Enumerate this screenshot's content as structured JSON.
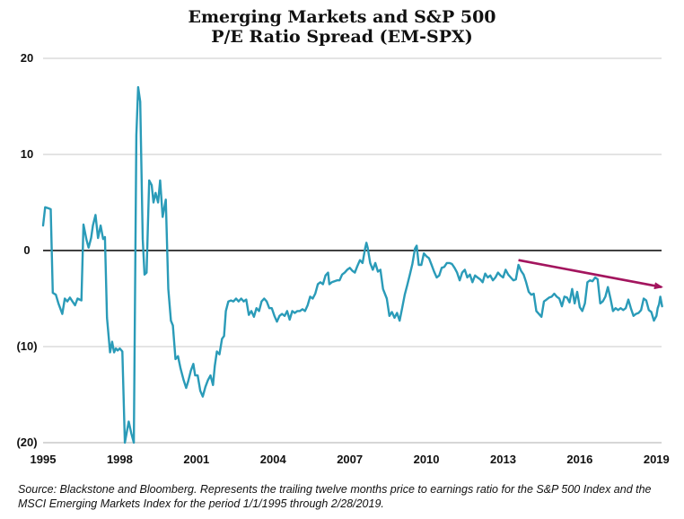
{
  "chart_data": {
    "type": "line",
    "title_lines": [
      "Emerging Markets and S&P 500",
      "P/E Ratio Spread (EM-SPX)"
    ],
    "xlabel": "",
    "ylabel": "",
    "xlim": [
      1995.0,
      2019.2
    ],
    "ylim": [
      -20,
      20
    ],
    "x_ticks": [
      {
        "value": 1995,
        "label": "1995"
      },
      {
        "value": 1998,
        "label": "1998"
      },
      {
        "value": 2001,
        "label": "2001"
      },
      {
        "value": 2004,
        "label": "2004"
      },
      {
        "value": 2007,
        "label": "2007"
      },
      {
        "value": 2010,
        "label": "2010"
      },
      {
        "value": 2013,
        "label": "2013"
      },
      {
        "value": 2016,
        "label": "2016"
      },
      {
        "value": 2019,
        "label": "2019"
      }
    ],
    "y_ticks": [
      {
        "value": 20,
        "label": "20"
      },
      {
        "value": 10,
        "label": "10"
      },
      {
        "value": 0,
        "label": "0"
      },
      {
        "value": -10,
        "label": "(10)"
      },
      {
        "value": -20,
        "label": "(20)"
      }
    ],
    "grid": "horizontal",
    "zero_line": true,
    "series": [
      {
        "color": "#2a9bb8",
        "points": [
          [
            1995.0,
            2.6
          ],
          [
            1995.08,
            4.5
          ],
          [
            1995.2,
            4.4
          ],
          [
            1995.3,
            4.3
          ],
          [
            1995.38,
            -4.4
          ],
          [
            1995.5,
            -4.6
          ],
          [
            1995.6,
            -5.5
          ],
          [
            1995.75,
            -6.6
          ],
          [
            1995.85,
            -5.0
          ],
          [
            1995.95,
            -5.3
          ],
          [
            1996.05,
            -4.9
          ],
          [
            1996.15,
            -5.3
          ],
          [
            1996.25,
            -5.7
          ],
          [
            1996.35,
            -5.0
          ],
          [
            1996.5,
            -5.2
          ],
          [
            1996.58,
            2.7
          ],
          [
            1996.7,
            1.1
          ],
          [
            1996.78,
            0.3
          ],
          [
            1996.88,
            1.3
          ],
          [
            1996.95,
            2.6
          ],
          [
            1997.05,
            3.7
          ],
          [
            1997.15,
            1.3
          ],
          [
            1997.25,
            2.6
          ],
          [
            1997.35,
            1.2
          ],
          [
            1997.42,
            1.4
          ],
          [
            1997.5,
            -7.0
          ],
          [
            1997.62,
            -10.6
          ],
          [
            1997.7,
            -9.5
          ],
          [
            1997.78,
            -10.6
          ],
          [
            1997.85,
            -10.2
          ],
          [
            1997.92,
            -10.4
          ],
          [
            1998.0,
            -10.2
          ],
          [
            1998.1,
            -10.5
          ],
          [
            1998.2,
            -20.0
          ],
          [
            1998.35,
            -17.8
          ],
          [
            1998.45,
            -19.0
          ],
          [
            1998.55,
            -20.0
          ],
          [
            1998.65,
            12.0
          ],
          [
            1998.72,
            17.0
          ],
          [
            1998.8,
            15.5
          ],
          [
            1998.9,
            1.2
          ],
          [
            1998.97,
            -2.5
          ],
          [
            1999.05,
            -2.3
          ],
          [
            1999.15,
            7.3
          ],
          [
            1999.25,
            6.8
          ],
          [
            1999.32,
            5.0
          ],
          [
            1999.4,
            6.0
          ],
          [
            1999.5,
            5.0
          ],
          [
            1999.58,
            7.3
          ],
          [
            1999.68,
            3.5
          ],
          [
            1999.8,
            5.3
          ],
          [
            1999.9,
            -4.0
          ],
          [
            2000.0,
            -7.3
          ],
          [
            2000.08,
            -7.8
          ],
          [
            2000.18,
            -11.3
          ],
          [
            2000.28,
            -11.0
          ],
          [
            2000.38,
            -12.3
          ],
          [
            2000.5,
            -13.5
          ],
          [
            2000.6,
            -14.3
          ],
          [
            2000.68,
            -13.6
          ],
          [
            2000.78,
            -12.5
          ],
          [
            2000.88,
            -11.8
          ],
          [
            2000.95,
            -13.0
          ],
          [
            2001.05,
            -13.0
          ],
          [
            2001.15,
            -14.6
          ],
          [
            2001.25,
            -15.2
          ],
          [
            2001.35,
            -14.2
          ],
          [
            2001.45,
            -13.5
          ],
          [
            2001.55,
            -13.0
          ],
          [
            2001.65,
            -14.0
          ],
          [
            2001.72,
            -12.0
          ],
          [
            2001.8,
            -10.5
          ],
          [
            2001.9,
            -10.8
          ],
          [
            2002.0,
            -9.2
          ],
          [
            2002.08,
            -8.9
          ],
          [
            2002.15,
            -6.3
          ],
          [
            2002.25,
            -5.3
          ],
          [
            2002.35,
            -5.2
          ],
          [
            2002.45,
            -5.3
          ],
          [
            2002.55,
            -5.0
          ],
          [
            2002.65,
            -5.3
          ],
          [
            2002.75,
            -5.0
          ],
          [
            2002.85,
            -5.3
          ],
          [
            2002.95,
            -5.1
          ],
          [
            2003.05,
            -6.7
          ],
          [
            2003.15,
            -6.3
          ],
          [
            2003.25,
            -6.9
          ],
          [
            2003.35,
            -6.0
          ],
          [
            2003.45,
            -6.3
          ],
          [
            2003.55,
            -5.3
          ],
          [
            2003.65,
            -5.0
          ],
          [
            2003.75,
            -5.3
          ],
          [
            2003.85,
            -6.0
          ],
          [
            2003.95,
            -6.0
          ],
          [
            2004.05,
            -6.8
          ],
          [
            2004.15,
            -7.4
          ],
          [
            2004.25,
            -6.8
          ],
          [
            2004.35,
            -6.6
          ],
          [
            2004.45,
            -6.8
          ],
          [
            2004.55,
            -6.3
          ],
          [
            2004.65,
            -7.2
          ],
          [
            2004.75,
            -6.3
          ],
          [
            2004.85,
            -6.5
          ],
          [
            2004.95,
            -6.3
          ],
          [
            2005.05,
            -6.3
          ],
          [
            2005.15,
            -6.1
          ],
          [
            2005.25,
            -6.3
          ],
          [
            2005.35,
            -5.7
          ],
          [
            2005.45,
            -4.8
          ],
          [
            2005.55,
            -5.0
          ],
          [
            2005.65,
            -4.5
          ],
          [
            2005.75,
            -3.5
          ],
          [
            2005.85,
            -3.3
          ],
          [
            2005.95,
            -3.5
          ],
          [
            2006.05,
            -2.6
          ],
          [
            2006.15,
            -2.3
          ],
          [
            2006.2,
            -3.5
          ],
          [
            2006.3,
            -3.3
          ],
          [
            2006.4,
            -3.2
          ],
          [
            2006.5,
            -3.1
          ],
          [
            2006.6,
            -3.1
          ],
          [
            2006.7,
            -2.5
          ],
          [
            2006.8,
            -2.3
          ],
          [
            2006.9,
            -2.0
          ],
          [
            2007.0,
            -1.8
          ],
          [
            2007.1,
            -2.1
          ],
          [
            2007.2,
            -2.3
          ],
          [
            2007.3,
            -1.6
          ],
          [
            2007.4,
            -1.0
          ],
          [
            2007.5,
            -1.3
          ],
          [
            2007.6,
            0.2
          ],
          [
            2007.65,
            0.8
          ],
          [
            2007.7,
            0.3
          ],
          [
            2007.8,
            -1.3
          ],
          [
            2007.9,
            -2.0
          ],
          [
            2008.0,
            -1.3
          ],
          [
            2008.1,
            -2.2
          ],
          [
            2008.2,
            -2.0
          ],
          [
            2008.3,
            -4.0
          ],
          [
            2008.45,
            -5.0
          ],
          [
            2008.55,
            -6.8
          ],
          [
            2008.65,
            -6.4
          ],
          [
            2008.75,
            -7.0
          ],
          [
            2008.85,
            -6.5
          ],
          [
            2008.95,
            -7.3
          ],
          [
            2009.05,
            -6.0
          ],
          [
            2009.15,
            -4.6
          ],
          [
            2009.25,
            -3.6
          ],
          [
            2009.35,
            -2.5
          ],
          [
            2009.45,
            -1.4
          ],
          [
            2009.55,
            0.2
          ],
          [
            2009.62,
            0.5
          ],
          [
            2009.7,
            -1.5
          ],
          [
            2009.8,
            -1.5
          ],
          [
            2009.9,
            -0.3
          ],
          [
            2010.0,
            -0.6
          ],
          [
            2010.1,
            -0.8
          ],
          [
            2010.2,
            -1.5
          ],
          [
            2010.3,
            -2.2
          ],
          [
            2010.4,
            -2.8
          ],
          [
            2010.5,
            -2.6
          ],
          [
            2010.6,
            -1.8
          ],
          [
            2010.7,
            -1.7
          ],
          [
            2010.8,
            -1.3
          ],
          [
            2010.9,
            -1.3
          ],
          [
            2011.0,
            -1.4
          ],
          [
            2011.1,
            -1.8
          ],
          [
            2011.2,
            -2.3
          ],
          [
            2011.3,
            -3.1
          ],
          [
            2011.4,
            -2.3
          ],
          [
            2011.5,
            -2.0
          ],
          [
            2011.6,
            -2.8
          ],
          [
            2011.7,
            -2.5
          ],
          [
            2011.8,
            -3.3
          ],
          [
            2011.9,
            -2.6
          ],
          [
            2012.0,
            -2.8
          ],
          [
            2012.1,
            -3.0
          ],
          [
            2012.2,
            -3.3
          ],
          [
            2012.3,
            -2.4
          ],
          [
            2012.4,
            -2.8
          ],
          [
            2012.5,
            -2.6
          ],
          [
            2012.6,
            -3.1
          ],
          [
            2012.7,
            -2.8
          ],
          [
            2012.8,
            -2.3
          ],
          [
            2012.9,
            -2.6
          ],
          [
            2013.0,
            -2.8
          ],
          [
            2013.1,
            -2.0
          ],
          [
            2013.2,
            -2.5
          ],
          [
            2013.3,
            -2.8
          ],
          [
            2013.4,
            -3.1
          ],
          [
            2013.5,
            -3.0
          ],
          [
            2013.6,
            -1.5
          ],
          [
            2013.7,
            -2.1
          ],
          [
            2013.8,
            -2.5
          ],
          [
            2013.9,
            -3.3
          ],
          [
            2014.0,
            -4.3
          ],
          [
            2014.1,
            -4.6
          ],
          [
            2014.2,
            -4.5
          ],
          [
            2014.3,
            -6.3
          ],
          [
            2014.4,
            -6.6
          ],
          [
            2014.5,
            -6.9
          ],
          [
            2014.6,
            -5.3
          ],
          [
            2014.7,
            -5.1
          ],
          [
            2014.8,
            -4.9
          ],
          [
            2014.9,
            -4.8
          ],
          [
            2015.0,
            -4.5
          ],
          [
            2015.1,
            -4.8
          ],
          [
            2015.2,
            -5.0
          ],
          [
            2015.3,
            -5.8
          ],
          [
            2015.4,
            -4.8
          ],
          [
            2015.5,
            -4.9
          ],
          [
            2015.6,
            -5.4
          ],
          [
            2015.7,
            -4.0
          ],
          [
            2015.8,
            -5.5
          ],
          [
            2015.9,
            -4.3
          ],
          [
            2016.0,
            -5.9
          ],
          [
            2016.1,
            -6.3
          ],
          [
            2016.2,
            -5.5
          ],
          [
            2016.3,
            -3.3
          ],
          [
            2016.4,
            -3.1
          ],
          [
            2016.5,
            -3.2
          ],
          [
            2016.6,
            -2.8
          ],
          [
            2016.7,
            -3.0
          ],
          [
            2016.8,
            -5.5
          ],
          [
            2016.9,
            -5.3
          ],
          [
            2017.0,
            -4.8
          ],
          [
            2017.1,
            -3.8
          ],
          [
            2017.2,
            -5.0
          ],
          [
            2017.3,
            -6.3
          ],
          [
            2017.4,
            -6.0
          ],
          [
            2017.5,
            -6.2
          ],
          [
            2017.6,
            -6.0
          ],
          [
            2017.7,
            -6.2
          ],
          [
            2017.8,
            -6.0
          ],
          [
            2017.9,
            -5.1
          ],
          [
            2018.0,
            -6.0
          ],
          [
            2018.1,
            -6.8
          ],
          [
            2018.2,
            -6.6
          ],
          [
            2018.3,
            -6.5
          ],
          [
            2018.4,
            -6.2
          ],
          [
            2018.5,
            -5.0
          ],
          [
            2018.6,
            -5.2
          ],
          [
            2018.7,
            -6.2
          ],
          [
            2018.8,
            -6.4
          ],
          [
            2018.9,
            -7.3
          ],
          [
            2019.0,
            -6.8
          ],
          [
            2019.05,
            -6.0
          ],
          [
            2019.1,
            -5.6
          ],
          [
            2019.15,
            -4.8
          ],
          [
            2019.22,
            -5.8
          ]
        ]
      }
    ],
    "annotations": [
      {
        "type": "arrow",
        "color": "#a3155e",
        "from": [
          2013.6,
          -1.0
        ],
        "to": [
          2019.2,
          -3.8
        ]
      }
    ],
    "source_note": "Source: Blackstone and Bloomberg. Represents the trailing twelve months price to earnings ratio for the S&P 500 Index and the MSCI Emerging Markets Index for the period 1/1/1995 through 2/28/2019."
  }
}
